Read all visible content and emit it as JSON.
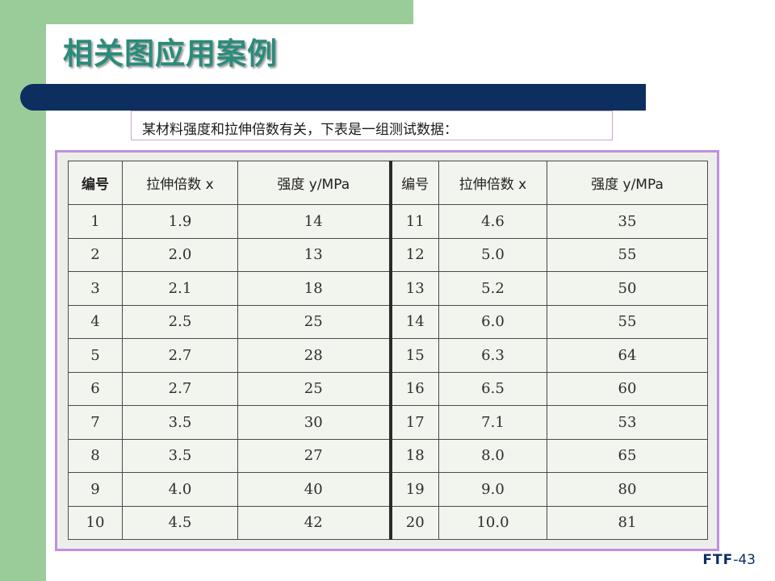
{
  "slide": {
    "title": "相关图应用案例",
    "subtitle": "某材料强度和拉伸倍数有关，下表是一组测试数据："
  },
  "table": {
    "headers": [
      "编号",
      "拉伸倍数 x",
      "强度 y/MPa",
      "编号",
      "拉伸倍数 x",
      "强度 y/MPa"
    ],
    "rows": [
      [
        "1",
        "1.9",
        "14",
        "11",
        "4.6",
        "35"
      ],
      [
        "2",
        "2.0",
        "13",
        "12",
        "5.0",
        "55"
      ],
      [
        "3",
        "2.1",
        "18",
        "13",
        "5.2",
        "50"
      ],
      [
        "4",
        "2.5",
        "25",
        "14",
        "6.0",
        "55"
      ],
      [
        "5",
        "2.7",
        "28",
        "15",
        "6.3",
        "64"
      ],
      [
        "6",
        "2.7",
        "25",
        "16",
        "6.5",
        "60"
      ],
      [
        "7",
        "3.5",
        "30",
        "17",
        "7.1",
        "53"
      ],
      [
        "8",
        "3.5",
        "27",
        "18",
        "8.0",
        "65"
      ],
      [
        "9",
        "4.0",
        "40",
        "19",
        "9.0",
        "80"
      ],
      [
        "10",
        "4.5",
        "42",
        "20",
        "10.0",
        "81"
      ]
    ]
  },
  "footer": {
    "brand": "FTF",
    "page": "-43"
  },
  "colors": {
    "sidebar_green": "#99cc99",
    "title_teal": "#2a8c7a",
    "navy_bar": "#0c2f60",
    "frame_purple": "#c090e0"
  }
}
